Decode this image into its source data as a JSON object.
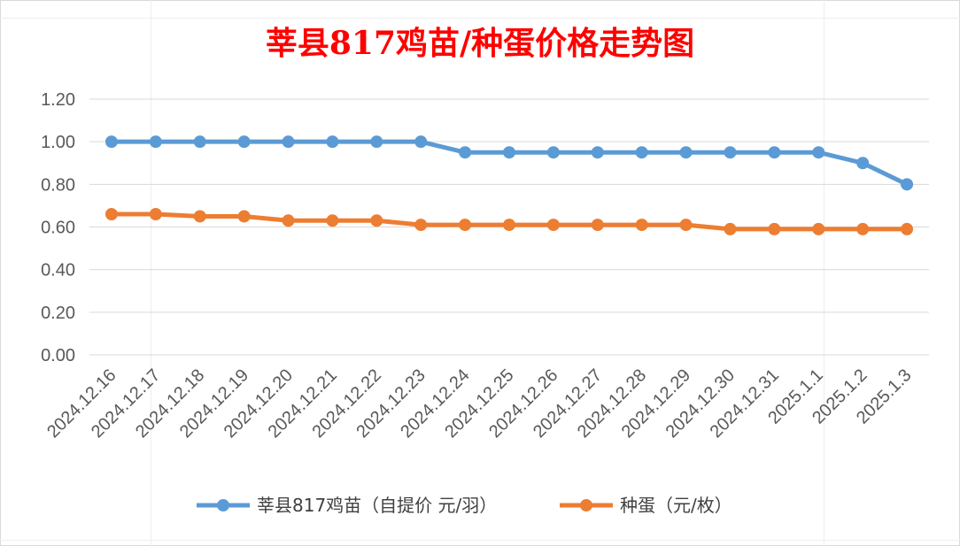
{
  "chart_data": {
    "type": "line",
    "title": "莘县817鸡苗/种蛋价格走势图",
    "categories": [
      "2024.12.16",
      "2024.12.17",
      "2024.12.18",
      "2024.12.19",
      "2024.12.20",
      "2024.12.21",
      "2024.12.22",
      "2024.12.23",
      "2024.12.24",
      "2024.12.25",
      "2024.12.26",
      "2024.12.27",
      "2024.12.28",
      "2024.12.29",
      "2024.12.30",
      "2024.12.31",
      "2025.1.1",
      "2025.1.2",
      "2025.1.3"
    ],
    "series": [
      {
        "name": "莘县817鸡苗（自提价 元/羽）",
        "color": "#5b9bd5",
        "values": [
          1.0,
          1.0,
          1.0,
          1.0,
          1.0,
          1.0,
          1.0,
          1.0,
          0.95,
          0.95,
          0.95,
          0.95,
          0.95,
          0.95,
          0.95,
          0.95,
          0.95,
          0.9,
          0.8
        ]
      },
      {
        "name": "种蛋（元/枚）",
        "color": "#ed7d31",
        "values": [
          0.66,
          0.66,
          0.65,
          0.65,
          0.63,
          0.63,
          0.63,
          0.61,
          0.61,
          0.61,
          0.61,
          0.61,
          0.61,
          0.61,
          0.59,
          0.59,
          0.59,
          0.59,
          0.59
        ]
      }
    ],
    "yticks": [
      "0.00",
      "0.20",
      "0.40",
      "0.60",
      "0.80",
      "1.00",
      "1.20"
    ],
    "ylim": [
      0,
      1.2
    ],
    "grid": true,
    "legend_position": "bottom",
    "title_color": "#ff0000"
  }
}
